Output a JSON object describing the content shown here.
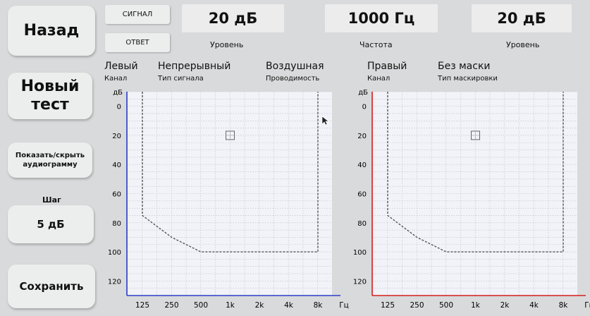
{
  "left_panel": {
    "back_label": "Назад",
    "new_test_line1": "Новый",
    "new_test_line2": "тест",
    "toggle_audiogram_line1": "Показать/скрыть",
    "toggle_audiogram_line2": "аудиограмму",
    "step_caption": "Шаг",
    "step_value": "5 дБ",
    "save_label": "Сохранить"
  },
  "top_bar": {
    "signal_label": "СИГНАЛ",
    "response_label": "ОТВЕТ",
    "level_left_value": "20 дБ",
    "level_left_caption": "Уровень",
    "frequency_value": "1000 Гц",
    "frequency_caption": "Частота",
    "level_right_value": "20 дБ",
    "level_right_caption": "Уровень"
  },
  "info": {
    "left_channel": "Левый",
    "left_channel_caption": "Канал",
    "signal_type": "Непрерывный",
    "signal_type_caption": "Тип сигнала",
    "conduction": "Воздушная",
    "conduction_caption": "Проводимость",
    "right_channel": "Правый",
    "right_channel_caption": "Канал",
    "masking": "Без маски",
    "masking_caption": "Тип маскировки"
  },
  "colors": {
    "left_axis": "#2c3fc9",
    "right_axis": "#d81e1e",
    "plot_background": "#f1f3f8",
    "button_background": "#eceded"
  },
  "chart_data": [
    {
      "type": "line",
      "channel": "left",
      "y_unit": "дБ",
      "x_unit": "Гц",
      "x_tick_labels": [
        "125",
        "250",
        "500",
        "1k",
        "2k",
        "4k",
        "8k"
      ],
      "x_categories": [
        125,
        250,
        500,
        1000,
        2000,
        4000,
        8000
      ],
      "y_ticks": [
        0,
        20,
        40,
        60,
        80,
        100,
        120
      ],
      "ylim": [
        -10,
        130
      ],
      "y_inverted": true,
      "grid": true,
      "limit_outline": [
        [
          125,
          -10
        ],
        [
          125,
          75
        ],
        [
          250,
          90
        ],
        [
          500,
          100
        ],
        [
          8000,
          100
        ],
        [
          8000,
          -10
        ]
      ],
      "cursor": {
        "x": 1000,
        "y": 20
      }
    },
    {
      "type": "line",
      "channel": "right",
      "y_unit": "дБ",
      "x_unit": "Гц",
      "x_tick_labels": [
        "125",
        "250",
        "500",
        "1k",
        "2k",
        "4k",
        "8k"
      ],
      "x_categories": [
        125,
        250,
        500,
        1000,
        2000,
        4000,
        8000
      ],
      "y_ticks": [
        0,
        20,
        40,
        60,
        80,
        100,
        120
      ],
      "ylim": [
        -10,
        130
      ],
      "y_inverted": true,
      "grid": true,
      "limit_outline": [
        [
          125,
          -10
        ],
        [
          125,
          75
        ],
        [
          250,
          90
        ],
        [
          500,
          100
        ],
        [
          8000,
          100
        ],
        [
          8000,
          -10
        ]
      ],
      "cursor": {
        "x": 1000,
        "y": 20
      }
    }
  ]
}
